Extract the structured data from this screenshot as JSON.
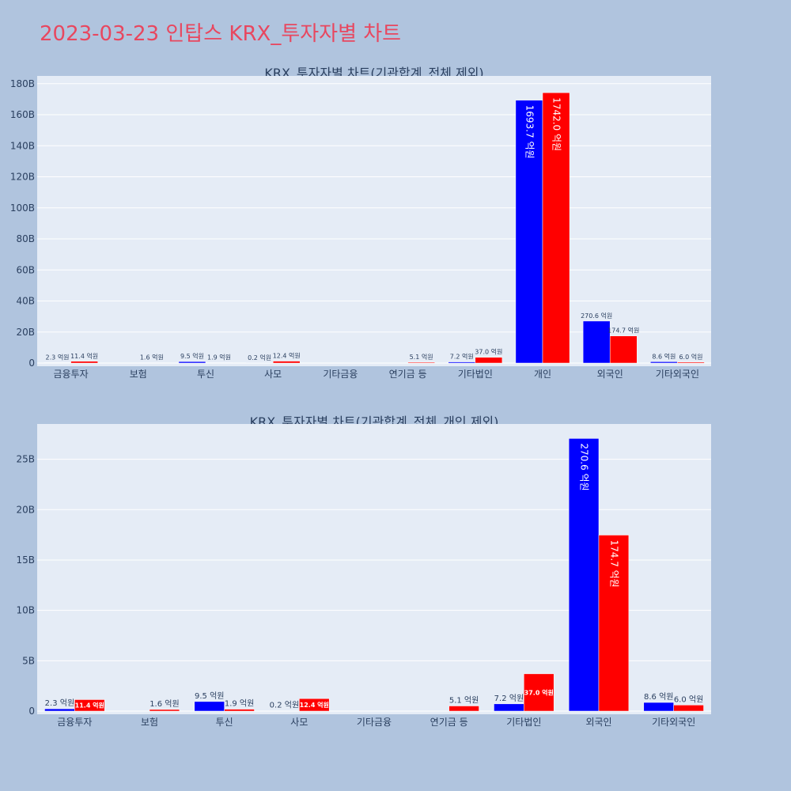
{
  "page_title": "2023-03-23 인탑스 KRX_투자자별 차트",
  "colors": {
    "buy": "#0000ff",
    "sell": "#ff0000",
    "background": "#b0c4de",
    "plot_bg": "#e5ecf6",
    "text": "#2a3f5f"
  },
  "chart_data": [
    {
      "type": "bar",
      "title": "KRX_투자자별 차트(기관합계_전체 제외)",
      "categories": [
        "금융투자",
        "보험",
        "투신",
        "사모",
        "기타금융",
        "연기금 등",
        "기타법인",
        "개인",
        "외국인",
        "기타외국인"
      ],
      "series": [
        {
          "values": [
            0.23,
            0,
            0.95,
            0.02,
            0,
            0,
            0.72,
            169.37,
            27.06,
            0.86
          ],
          "labels": [
            "2.3 억원",
            "",
            "9.5 억원",
            "0.2 억원",
            "",
            "",
            "7.2 억원",
            "1693.7 억원",
            "270.6 억원",
            "8.6 억원"
          ]
        },
        {
          "values": [
            1.14,
            0.16,
            0.19,
            1.24,
            0,
            0.51,
            3.7,
            174.2,
            17.47,
            0.6
          ],
          "labels": [
            "11.4 억원",
            "1.6 억원",
            "1.9 억원",
            "12.4 억원",
            "",
            "5.1 억원",
            "37.0 억원",
            "1742.0 억원",
            "174.7 억원",
            "6.0 억원"
          ]
        }
      ],
      "yticks": [
        0,
        20,
        40,
        60,
        80,
        100,
        120,
        140,
        160,
        180
      ],
      "ytick_labels": [
        "0",
        "20B",
        "40B",
        "60B",
        "80B",
        "100B",
        "120B",
        "140B",
        "160B",
        "180B"
      ],
      "ylim": [
        0,
        185
      ],
      "grid": true
    },
    {
      "type": "bar",
      "title": "KRX_투자자별 차트(기관합계_전체_개인 제외)",
      "categories": [
        "금융투자",
        "보험",
        "투신",
        "사모",
        "기타금융",
        "연기금 등",
        "기타법인",
        "외국인",
        "기타외국인"
      ],
      "series": [
        {
          "values": [
            0.23,
            0,
            0.95,
            0.02,
            0,
            0,
            0.72,
            27.06,
            0.86
          ],
          "labels": [
            "2.3 억원",
            "",
            "9.5 억원",
            "0.2 억원",
            "",
            "",
            "7.2 억원",
            "270.6 억원",
            "8.6 억원"
          ]
        },
        {
          "values": [
            1.14,
            0.16,
            0.19,
            1.24,
            0,
            0.51,
            3.7,
            17.47,
            0.6
          ],
          "labels": [
            "11.4 억원",
            "1.6 억원",
            "1.9 억원",
            "12.4 억원",
            "",
            "5.1 억원",
            "37.0 억원",
            "174.7 억원",
            "6.0 억원"
          ]
        }
      ],
      "yticks": [
        0,
        5,
        10,
        15,
        20,
        25
      ],
      "ytick_labels": [
        "0",
        "5B",
        "10B",
        "15B",
        "20B",
        "25B"
      ],
      "ylim": [
        0,
        28.5
      ],
      "grid": true
    }
  ]
}
